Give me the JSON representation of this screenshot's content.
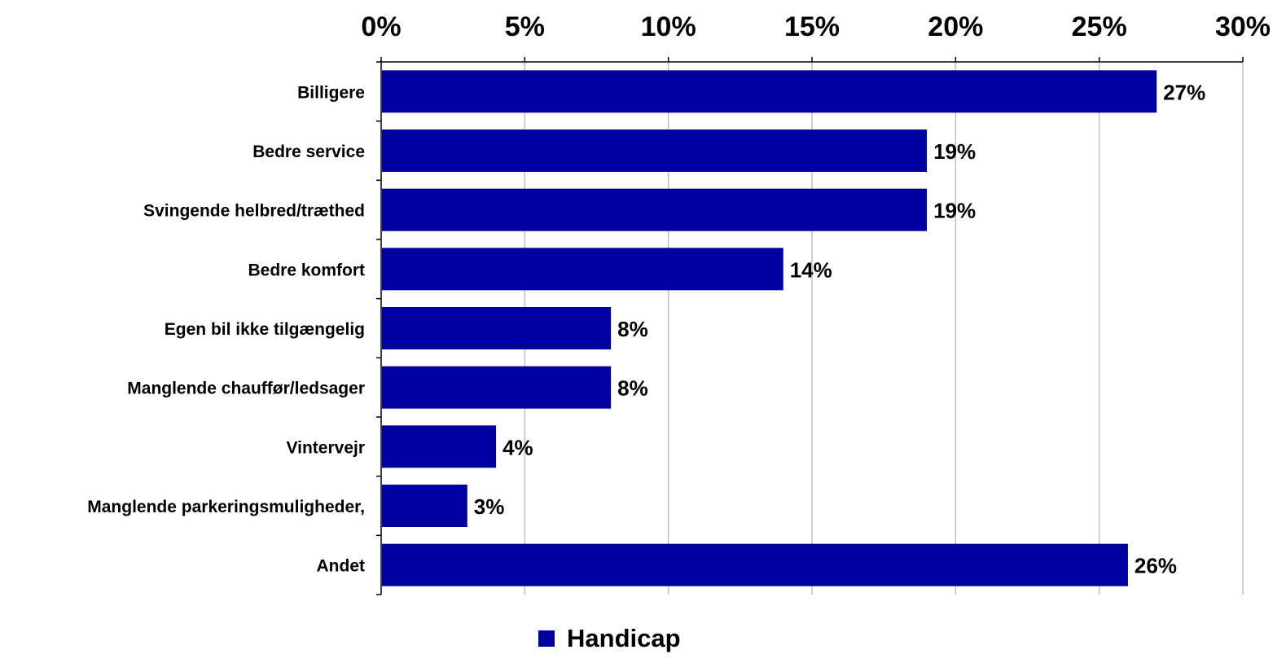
{
  "chart_data": {
    "type": "bar",
    "orientation": "horizontal",
    "categories": [
      "Billigere",
      "Bedre service",
      "Svingende helbred/træthed",
      "Bedre komfort",
      "Egen bil ikke tilgængelig",
      "Manglende chauffør/ledsager",
      "Vintervejr",
      "Manglende parkeringsmuligheder,",
      "Andet"
    ],
    "series": [
      {
        "name": "Handicap",
        "color": "#0000A0",
        "values": [
          27,
          19,
          19,
          14,
          8,
          8,
          4,
          3,
          26
        ]
      }
    ],
    "data_labels": [
      "27%",
      "19%",
      "19%",
      "14%",
      "8%",
      "8%",
      "4%",
      "3%",
      "26%"
    ],
    "xlim": [
      0,
      30
    ],
    "x_ticks": [
      0,
      5,
      10,
      15,
      20,
      25,
      30
    ],
    "x_tick_labels": [
      "0%",
      "5%",
      "10%",
      "15%",
      "20%",
      "25%",
      "30%"
    ],
    "x_axis_position": "top",
    "grid": true,
    "legend_position": "bottom"
  }
}
